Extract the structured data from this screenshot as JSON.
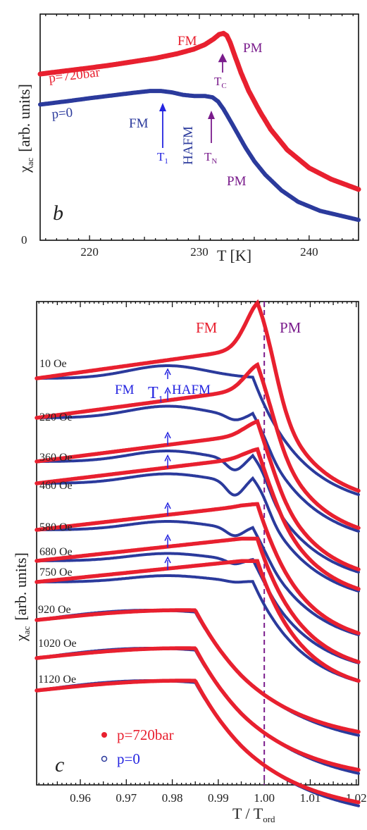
{
  "colors": {
    "red": "#e8202f",
    "blue": "#2b3a9c",
    "purple": "#7a1c8c",
    "arrow_blue": "#2424e0"
  },
  "chart_data": [
    {
      "panel_letter": "b",
      "type": "line",
      "ylabel_main": "χ",
      "ylabel_sub": "ac",
      "ylabel_rest": "[arb. units]",
      "xlabel": "T [K]",
      "xlim": [
        215.5,
        244.5
      ],
      "xticks": [
        "220",
        "230",
        "240"
      ],
      "xtick_values": [
        220,
        230,
        240
      ],
      "yzero_label": "0",
      "series": [
        {
          "name": "p=720bar",
          "color": "red",
          "x": [
            215.5,
            218,
            220,
            222,
            224,
            226,
            228,
            229.5,
            230.5,
            231.3,
            231.8,
            232.2,
            232.5,
            232.8,
            233.2,
            233.8,
            234.5,
            235.5,
            236.5,
            238,
            240,
            242,
            244.5
          ],
          "y": [
            0.735,
            0.75,
            0.762,
            0.775,
            0.79,
            0.805,
            0.825,
            0.845,
            0.865,
            0.89,
            0.91,
            0.915,
            0.905,
            0.875,
            0.82,
            0.74,
            0.66,
            0.57,
            0.49,
            0.4,
            0.32,
            0.27,
            0.225
          ]
        },
        {
          "name": "p=0",
          "color": "blue",
          "x": [
            215.5,
            218,
            220,
            222,
            224,
            225.5,
            226.5,
            227.5,
            228.5,
            229.5,
            230.5,
            231.2,
            231.7,
            232.2,
            232.8,
            233.5,
            234.2,
            235,
            236,
            237.5,
            239,
            241,
            244.5
          ],
          "y": [
            0.6,
            0.615,
            0.628,
            0.64,
            0.652,
            0.66,
            0.66,
            0.654,
            0.643,
            0.638,
            0.638,
            0.632,
            0.614,
            0.58,
            0.53,
            0.47,
            0.41,
            0.35,
            0.29,
            0.22,
            0.17,
            0.13,
            0.09
          ]
        }
      ],
      "annotations": [
        {
          "text": "FM",
          "color": "red"
        },
        {
          "text": "PM",
          "color": "purple"
        },
        {
          "text": "T",
          "sub": "C",
          "color": "purple"
        },
        {
          "text": "p=720bar",
          "color": "red"
        },
        {
          "text": "p=0",
          "color": "blue"
        },
        {
          "text": "FM",
          "color": "blue"
        },
        {
          "text": "T",
          "sub": "1",
          "color": "blue"
        },
        {
          "text": "HAFM",
          "color": "blue"
        },
        {
          "text": "T",
          "sub": "N",
          "color": "purple"
        },
        {
          "text": "PM",
          "color": "purple"
        }
      ]
    },
    {
      "panel_letter": "c",
      "type": "line",
      "ylabel_main": "χ",
      "ylabel_sub": "ac",
      "ylabel_rest": "[arb. units]",
      "xlabel_main": "T / T",
      "xlabel_sub": "ord",
      "xlim": [
        0.9505,
        1.0205
      ],
      "xticks": [
        "0.96",
        "0.97",
        "0.98",
        "0.99",
        "1.00",
        "1.01",
        "1.02"
      ],
      "xtick_values": [
        0.96,
        0.97,
        0.98,
        0.99,
        1.0,
        1.01,
        1.02
      ],
      "vline_x": 1.0,
      "top_labels": [
        {
          "text": "FM",
          "color": "red"
        },
        {
          "text": "PM",
          "color": "purple"
        }
      ],
      "t1_label": {
        "fm": "FM",
        "t": "T",
        "sub": "1",
        "hafm": "HAFM"
      },
      "curves": [
        {
          "field": "10 Oe",
          "t1_arrow": true,
          "offset": 0.0,
          "red_peak": 1.0,
          "blue_dip": 0.0,
          "blue_bump": 0.0
        },
        {
          "field": "220 Oe",
          "t1_arrow": true,
          "offset": 0.0,
          "red_peak": 0.55,
          "blue_dip": 0.3,
          "blue_bump": 0.35
        },
        {
          "field": "360 Oe",
          "t1_arrow": true,
          "offset": 0.0,
          "red_peak": 0.3,
          "blue_dip": 0.7,
          "blue_bump": 0.55
        },
        {
          "field": "460 Oe",
          "t1_arrow": true,
          "offset": 0.0,
          "red_peak": 0.2,
          "blue_dip": 0.9,
          "blue_bump": 0.5
        },
        {
          "field": "580 Oe",
          "t1_arrow": true,
          "offset": 0.0,
          "red_peak": 0.05,
          "blue_dip": 0.5,
          "blue_bump": 0.2
        },
        {
          "field": "680 Oe",
          "t1_arrow": true,
          "offset": 0.0,
          "red_peak": 0.0,
          "blue_dip": 0.3,
          "blue_bump": 0.1
        },
        {
          "field": "750 Oe",
          "t1_arrow": true,
          "offset": 0.0,
          "red_peak": 0.0,
          "blue_dip": 0.1,
          "blue_bump": 0.0
        },
        {
          "field": "920 Oe",
          "t1_arrow": false,
          "offset": 0.0,
          "red_peak": 0.0,
          "blue_dip": 0.0,
          "blue_bump": 0.0
        },
        {
          "field": "1020 Oe",
          "t1_arrow": false,
          "offset": 0.0,
          "red_peak": 0.0,
          "blue_dip": 0.0,
          "blue_bump": 0.0
        },
        {
          "field": "1120 Oe",
          "t1_arrow": false,
          "offset": 0.0,
          "red_peak": 0.0,
          "blue_dip": 0.0,
          "blue_bump": 0.0
        }
      ],
      "legend": [
        {
          "marker": "filled",
          "label": "p=720bar",
          "color": "red"
        },
        {
          "marker": "open",
          "label": "p=0",
          "color": "blue"
        }
      ]
    }
  ]
}
